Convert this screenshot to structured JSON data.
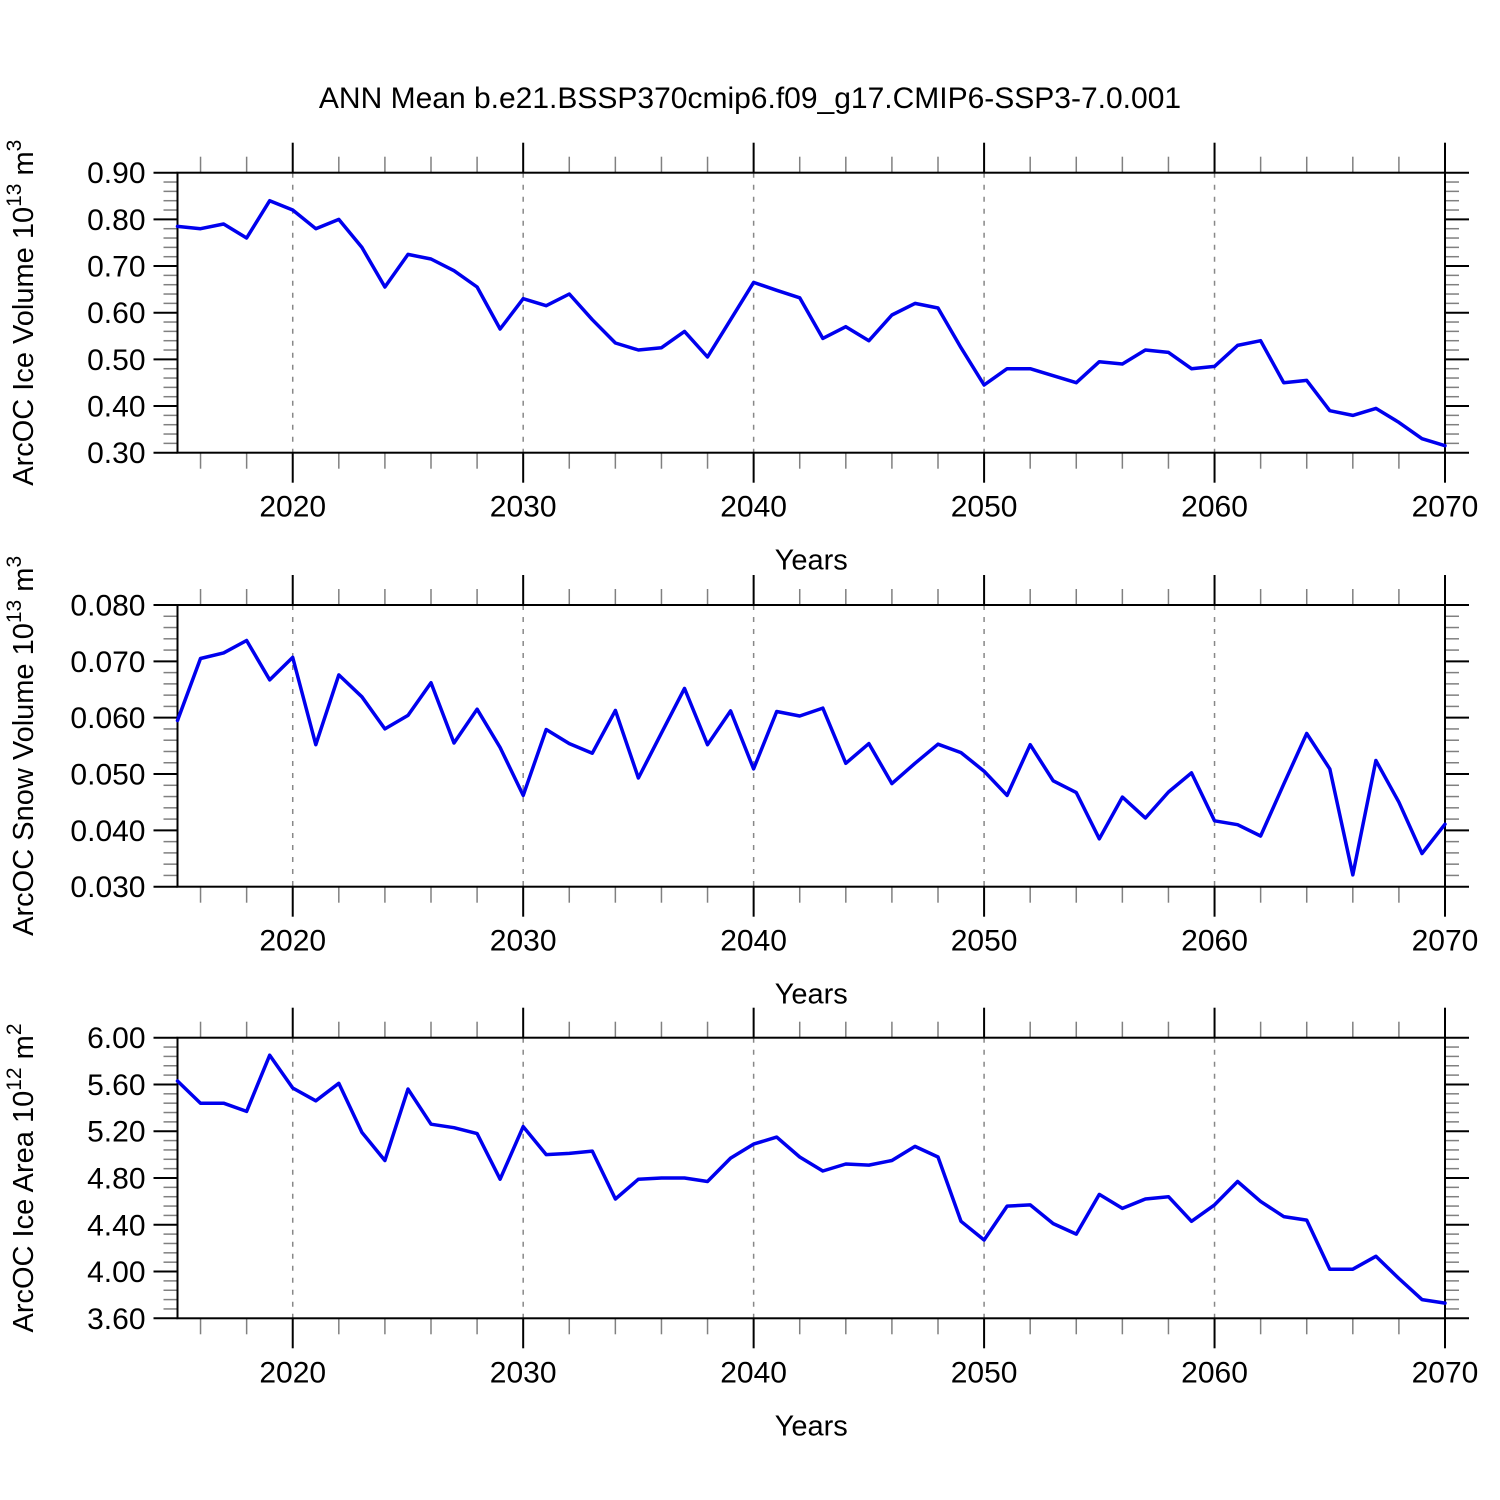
{
  "title": "ANN Mean b.e21.BSSP370cmip6.f09_g17.CMIP6-SSP3-7.0.001",
  "line_color": "#0000EE",
  "grid_color": "#888888",
  "minor_tick_color": "#808080",
  "chart_data": [
    {
      "type": "line",
      "name": "ice-volume",
      "title": "",
      "xlabel": "Years",
      "ylabel_parts": [
        [
          "ArcOC Ice Volume 10",
          0
        ],
        [
          "13",
          1
        ],
        [
          " m",
          0
        ],
        [
          "3",
          1
        ]
      ],
      "xlim": [
        2015,
        2070
      ],
      "ylim": [
        0.3,
        0.9
      ],
      "ytick_step": 0.1,
      "yminor_step": 0.02,
      "ytick_decimals": 2,
      "ytick_labels": [
        "0.30",
        "0.40",
        "0.50",
        "0.60",
        "0.70",
        "0.80",
        "0.90"
      ],
      "xticks": [
        2020,
        2030,
        2040,
        2050,
        2060,
        2070
      ],
      "xminor_every": 2,
      "grid_years": [
        2020,
        2030,
        2040,
        2050,
        2060
      ],
      "legend": "none",
      "x": [
        2015,
        2016,
        2017,
        2018,
        2019,
        2020,
        2021,
        2022,
        2023,
        2024,
        2025,
        2026,
        2027,
        2028,
        2029,
        2030,
        2031,
        2032,
        2033,
        2034,
        2035,
        2036,
        2037,
        2038,
        2039,
        2040,
        2041,
        2042,
        2043,
        2044,
        2045,
        2046,
        2047,
        2048,
        2049,
        2050,
        2051,
        2052,
        2053,
        2054,
        2055,
        2056,
        2057,
        2058,
        2059,
        2060,
        2061,
        2062,
        2063,
        2064,
        2065,
        2066,
        2067,
        2068,
        2069,
        2070
      ],
      "values": [
        0.785,
        0.78,
        0.79,
        0.76,
        0.84,
        0.82,
        0.78,
        0.8,
        0.74,
        0.655,
        0.725,
        0.715,
        0.69,
        0.655,
        0.565,
        0.63,
        0.615,
        0.64,
        0.585,
        0.535,
        0.52,
        0.525,
        0.56,
        0.505,
        0.585,
        0.665,
        0.648,
        0.632,
        0.545,
        0.57,
        0.54,
        0.595,
        0.62,
        0.61,
        0.525,
        0.445,
        0.48,
        0.48,
        0.465,
        0.45,
        0.495,
        0.49,
        0.52,
        0.515,
        0.48,
        0.485,
        0.53,
        0.54,
        0.45,
        0.455,
        0.39,
        0.38,
        0.395,
        0.365,
        0.33,
        0.315
      ]
    },
    {
      "type": "line",
      "name": "snow-volume",
      "title": "",
      "xlabel": "Years",
      "ylabel_parts": [
        [
          "ArcOC Snow Volume 10",
          0
        ],
        [
          "13",
          1
        ],
        [
          " m",
          0
        ],
        [
          "3",
          1
        ]
      ],
      "xlim": [
        2015,
        2070
      ],
      "ylim": [
        0.03,
        0.08
      ],
      "ytick_step": 0.01,
      "yminor_step": 0.002,
      "ytick_decimals": 3,
      "ytick_labels": [
        "0.030",
        "0.040",
        "0.050",
        "0.060",
        "0.070",
        "0.080"
      ],
      "xticks": [
        2020,
        2030,
        2040,
        2050,
        2060,
        2070
      ],
      "xminor_every": 2,
      "grid_years": [
        2020,
        2030,
        2040,
        2050,
        2060
      ],
      "legend": "none",
      "x": [
        2015,
        2016,
        2017,
        2018,
        2019,
        2020,
        2021,
        2022,
        2023,
        2024,
        2025,
        2026,
        2027,
        2028,
        2029,
        2030,
        2031,
        2032,
        2033,
        2034,
        2035,
        2036,
        2037,
        2038,
        2039,
        2040,
        2041,
        2042,
        2043,
        2044,
        2045,
        2046,
        2047,
        2048,
        2049,
        2050,
        2051,
        2052,
        2053,
        2054,
        2055,
        2056,
        2057,
        2058,
        2059,
        2060,
        2061,
        2062,
        2063,
        2064,
        2065,
        2066,
        2067,
        2068,
        2069,
        2070
      ],
      "values": [
        0.0595,
        0.0705,
        0.0715,
        0.0737,
        0.0667,
        0.0707,
        0.0552,
        0.0676,
        0.0637,
        0.058,
        0.0604,
        0.0662,
        0.0555,
        0.0615,
        0.0547,
        0.0462,
        0.0579,
        0.0554,
        0.0537,
        0.0613,
        0.0493,
        0.0573,
        0.0652,
        0.0552,
        0.0612,
        0.0509,
        0.0611,
        0.0603,
        0.0617,
        0.0519,
        0.0554,
        0.0483,
        0.0519,
        0.0553,
        0.0538,
        0.0505,
        0.0462,
        0.0552,
        0.0488,
        0.0467,
        0.0385,
        0.0459,
        0.0422,
        0.0468,
        0.0502,
        0.0417,
        0.041,
        0.039,
        0.0482,
        0.0572,
        0.0509,
        0.0321,
        0.0524,
        0.045,
        0.0359,
        0.0411
      ]
    },
    {
      "type": "line",
      "name": "ice-area",
      "title": "",
      "xlabel": "Years",
      "ylabel_parts": [
        [
          "ArcOC Ice Area 10",
          0
        ],
        [
          "12",
          1
        ],
        [
          " m",
          0
        ],
        [
          "2",
          1
        ]
      ],
      "xlim": [
        2015,
        2070
      ],
      "ylim": [
        3.6,
        6.0
      ],
      "ytick_step": 0.4,
      "yminor_step": 0.08,
      "ytick_decimals": 2,
      "ytick_labels": [
        "3.60",
        "4.00",
        "4.40",
        "4.80",
        "5.20",
        "5.60",
        "6.00"
      ],
      "xticks": [
        2020,
        2030,
        2040,
        2050,
        2060,
        2070
      ],
      "xminor_every": 2,
      "grid_years": [
        2020,
        2030,
        2040,
        2050,
        2060
      ],
      "legend": "none",
      "x": [
        2015,
        2016,
        2017,
        2018,
        2019,
        2020,
        2021,
        2022,
        2023,
        2024,
        2025,
        2026,
        2027,
        2028,
        2029,
        2030,
        2031,
        2032,
        2033,
        2034,
        2035,
        2036,
        2037,
        2038,
        2039,
        2040,
        2041,
        2042,
        2043,
        2044,
        2045,
        2046,
        2047,
        2048,
        2049,
        2050,
        2051,
        2052,
        2053,
        2054,
        2055,
        2056,
        2057,
        2058,
        2059,
        2060,
        2061,
        2062,
        2063,
        2064,
        2065,
        2066,
        2067,
        2068,
        2069,
        2070
      ],
      "values": [
        5.63,
        5.44,
        5.44,
        5.37,
        5.85,
        5.57,
        5.46,
        5.61,
        5.19,
        4.95,
        5.56,
        5.26,
        5.23,
        5.18,
        4.79,
        5.24,
        5.0,
        5.01,
        5.03,
        4.62,
        4.79,
        4.8,
        4.8,
        4.77,
        4.97,
        5.09,
        5.15,
        4.98,
        4.86,
        4.92,
        4.91,
        4.95,
        5.07,
        4.98,
        4.43,
        4.27,
        4.56,
        4.57,
        4.41,
        4.32,
        4.66,
        4.54,
        4.62,
        4.64,
        4.43,
        4.57,
        4.77,
        4.6,
        4.47,
        4.44,
        4.02,
        4.02,
        4.13,
        3.94,
        3.76,
        3.73
      ]
    }
  ]
}
